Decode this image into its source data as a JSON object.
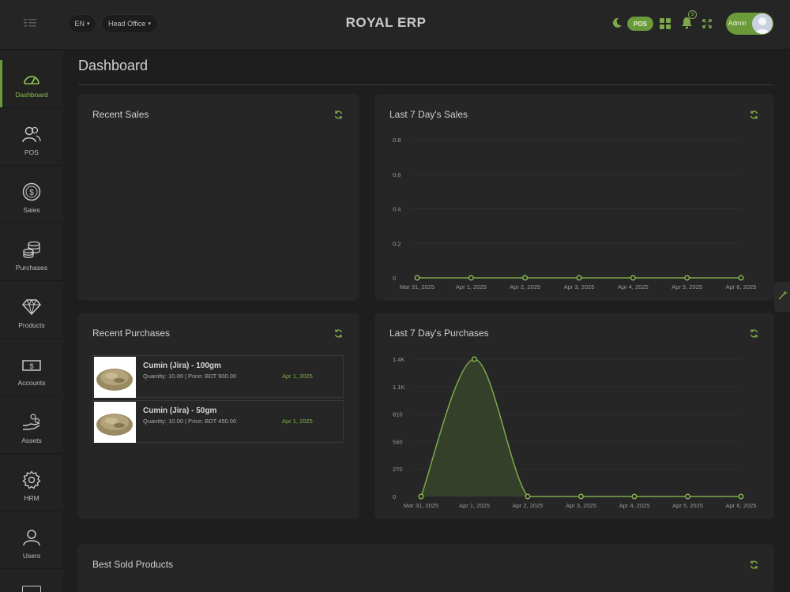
{
  "header": {
    "language": "EN",
    "branch": "Head Office",
    "app_title": "ROYAL ERP",
    "pos_label": "POS",
    "notification_count": "3",
    "user_label": "Admin",
    "icons": [
      "menu-icon",
      "moon-icon",
      "grid-icon",
      "bell-icon",
      "fullscreen-icon"
    ]
  },
  "sidebar": {
    "items": [
      {
        "label": "Dashboard",
        "icon": "speedometer-icon",
        "active": true
      },
      {
        "label": "POS",
        "icon": "users-icon"
      },
      {
        "label": "Sales",
        "icon": "dollar-coin-icon"
      },
      {
        "label": "Purchases",
        "icon": "coins-stack-icon"
      },
      {
        "label": "Products",
        "icon": "diamond-icon"
      },
      {
        "label": "Accounts",
        "icon": "money-icon"
      },
      {
        "label": "Assets",
        "icon": "hand-coins-icon"
      },
      {
        "label": "HRM",
        "icon": "gear-icon"
      },
      {
        "label": "Users",
        "icon": "user-icon"
      }
    ]
  },
  "page": {
    "title": "Dashboard"
  },
  "cards": {
    "recent_sales": {
      "title": "Recent Sales"
    },
    "last7_sales": {
      "title": "Last 7 Day's Sales"
    },
    "recent_purchases": {
      "title": "Recent Purchases",
      "items": [
        {
          "name": "Cumin (Jira) - 100gm",
          "info": "Quantity: 10.00 | Price: BDT 900.00",
          "date": "Apr 1, 2025"
        },
        {
          "name": "Cumin (Jira) - 50gm",
          "info": "Quantity: 10.00 | Price: BDT 450.00",
          "date": "Apr 1, 2025"
        }
      ]
    },
    "last7_purchases": {
      "title": "Last 7 Day's Purchases"
    },
    "best_sold": {
      "title": "Best Sold Products"
    }
  },
  "colors": {
    "accent": "#6a9a3a",
    "accent_light": "#8cbf52",
    "background": "#1e1e1e",
    "card": "#262626"
  },
  "chart_data": [
    {
      "type": "line",
      "title": "Last 7 Day's Sales",
      "categories": [
        "Mar 31, 2025",
        "Apr 1, 2025",
        "Apr 2, 2025",
        "Apr 3, 2025",
        "Apr 4, 2025",
        "Apr 5, 2025",
        "Apr 6, 2025"
      ],
      "values": [
        0,
        0,
        0,
        0,
        0,
        0,
        0
      ],
      "ylim": [
        0,
        0.8
      ],
      "yticks": [
        "0",
        "0.2",
        "0.4",
        "0.6",
        "0.8"
      ],
      "grid": true
    },
    {
      "type": "area",
      "title": "Last 7 Day's Purchases",
      "categories": [
        "Mar 31, 2025",
        "Apr 1, 2025",
        "Apr 2, 2025",
        "Apr 3, 2025",
        "Apr 4, 2025",
        "Apr 5, 2025",
        "Apr 6, 2025"
      ],
      "values": [
        0,
        1350,
        0,
        0,
        0,
        0,
        0
      ],
      "ylim": [
        0,
        1350
      ],
      "yticks": [
        "0",
        "270",
        "540",
        "810",
        "1.1K",
        "1.4K"
      ],
      "grid": true
    }
  ]
}
